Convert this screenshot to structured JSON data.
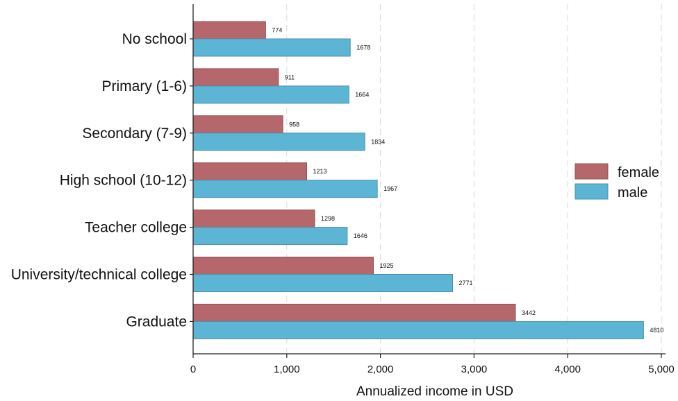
{
  "chart_data": {
    "type": "bar",
    "orientation": "horizontal",
    "categories": [
      "No school",
      "Primary (1-6)",
      "Secondary (7-9)",
      "High school (10-12)",
      "Teacher college",
      "University/technical college",
      "Graduate"
    ],
    "series": [
      {
        "name": "female",
        "color": "#b5676c",
        "values": [
          774,
          911,
          958,
          1213,
          1298,
          1925,
          3442
        ]
      },
      {
        "name": "male",
        "color": "#5db5d6",
        "values": [
          1678,
          1664,
          1834,
          1967,
          1646,
          2771,
          4810
        ]
      }
    ],
    "title": "",
    "xlabel": "Annualized income in USD",
    "ylabel": "",
    "xlim": [
      0,
      5000
    ],
    "xticks": [
      0,
      1000,
      2000,
      3000,
      4000,
      5000
    ],
    "xtick_labels": [
      "0",
      "1,000",
      "2,000",
      "3,000",
      "4,000",
      "5,000"
    ],
    "grid": true,
    "legend_position": "right",
    "data_labels": true
  }
}
